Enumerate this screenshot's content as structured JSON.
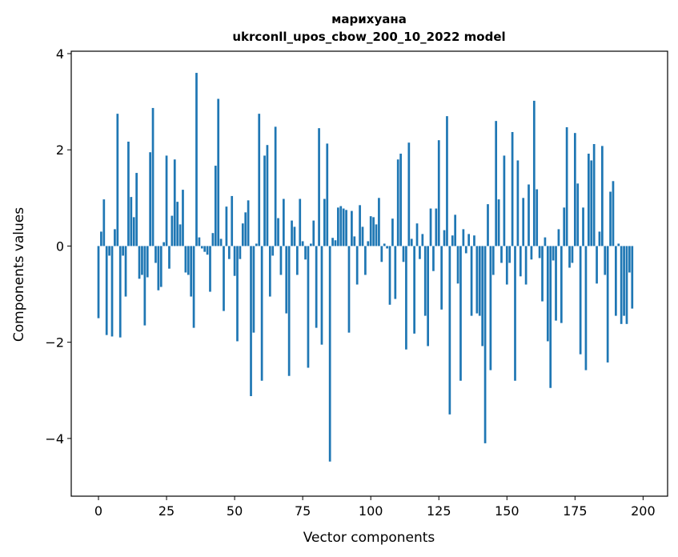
{
  "chart_data": {
    "type": "bar",
    "title_line1": "марихуана",
    "title_line2": "ukrconll_upos_cbow_200_10_2022 model",
    "xlabel": "Vector components",
    "ylabel": "Components values",
    "xlim": [
      -10,
      209
    ],
    "ylim": [
      -5.2,
      4.05
    ],
    "xticks": [
      0,
      25,
      50,
      75,
      100,
      125,
      150,
      175,
      200
    ],
    "xtick_labels": [
      "0",
      "25",
      "50",
      "75",
      "100",
      "125",
      "150",
      "175",
      "200"
    ],
    "yticks": [
      -4,
      -2,
      0,
      2,
      4
    ],
    "ytick_labels": [
      "−4",
      "−2",
      "0",
      "2",
      "4"
    ],
    "bar_color": "#1f77b4",
    "values": [
      -1.5,
      0.3,
      0.97,
      -1.85,
      -0.2,
      -1.88,
      0.35,
      2.75,
      -1.9,
      -0.2,
      -1.05,
      2.17,
      1.02,
      0.6,
      1.52,
      -0.68,
      -0.6,
      -1.65,
      -0.65,
      1.95,
      2.87,
      -0.35,
      -0.92,
      -0.85,
      0.08,
      1.88,
      -0.47,
      0.63,
      1.8,
      0.92,
      0.45,
      1.17,
      -0.55,
      -0.6,
      -1.05,
      -1.7,
      3.6,
      0.18,
      -0.05,
      -0.12,
      -0.18,
      -0.95,
      0.27,
      1.67,
      3.06,
      0.15,
      -1.35,
      0.82,
      -0.27,
      1.04,
      -0.62,
      -1.98,
      -0.27,
      0.47,
      0.7,
      0.95,
      -3.12,
      -1.8,
      0.05,
      2.75,
      -2.8,
      1.88,
      2.1,
      -1.05,
      -0.2,
      2.48,
      0.58,
      -0.6,
      0.98,
      -1.4,
      -2.7,
      0.53,
      0.4,
      -0.6,
      0.98,
      0.1,
      -0.28,
      -2.53,
      0.05,
      0.53,
      -1.7,
      2.45,
      -2.05,
      0.98,
      2.13,
      -4.48,
      0.17,
      0.12,
      0.8,
      0.83,
      0.78,
      0.75,
      -1.8,
      0.73,
      0.2,
      -0.8,
      0.85,
      0.4,
      -0.6,
      0.1,
      0.62,
      0.6,
      0.45,
      1.0,
      -0.33,
      0.05,
      -0.05,
      -1.22,
      0.57,
      -1.1,
      1.8,
      1.92,
      -0.33,
      -2.15,
      2.15,
      0.15,
      -1.82,
      0.47,
      -0.27,
      0.25,
      -1.45,
      -2.08,
      0.78,
      -0.52,
      0.78,
      2.2,
      -1.32,
      0.33,
      2.7,
      -3.5,
      0.22,
      0.65,
      -0.78,
      -2.8,
      0.35,
      -0.15,
      0.25,
      -1.45,
      0.22,
      -1.4,
      -1.45,
      -2.08,
      -4.1,
      0.87,
      -2.58,
      -0.6,
      2.6,
      0.97,
      -0.35,
      1.88,
      -0.8,
      -0.35,
      2.37,
      -2.8,
      1.78,
      -0.63,
      1.0,
      -0.8,
      1.28,
      -0.28,
      3.02,
      1.18,
      -0.25,
      -1.15,
      0.18,
      -1.98,
      -2.95,
      -0.3,
      -1.55,
      0.35,
      -1.6,
      0.8,
      2.47,
      -0.45,
      -0.35,
      2.35,
      1.3,
      -2.25,
      0.8,
      -2.58,
      1.92,
      1.78,
      2.12,
      -0.78,
      0.3,
      2.08,
      -0.6,
      -2.42,
      1.13,
      1.35,
      -1.45,
      0.05,
      -1.62,
      -1.45,
      -1.62,
      -0.55,
      -1.3
    ]
  }
}
